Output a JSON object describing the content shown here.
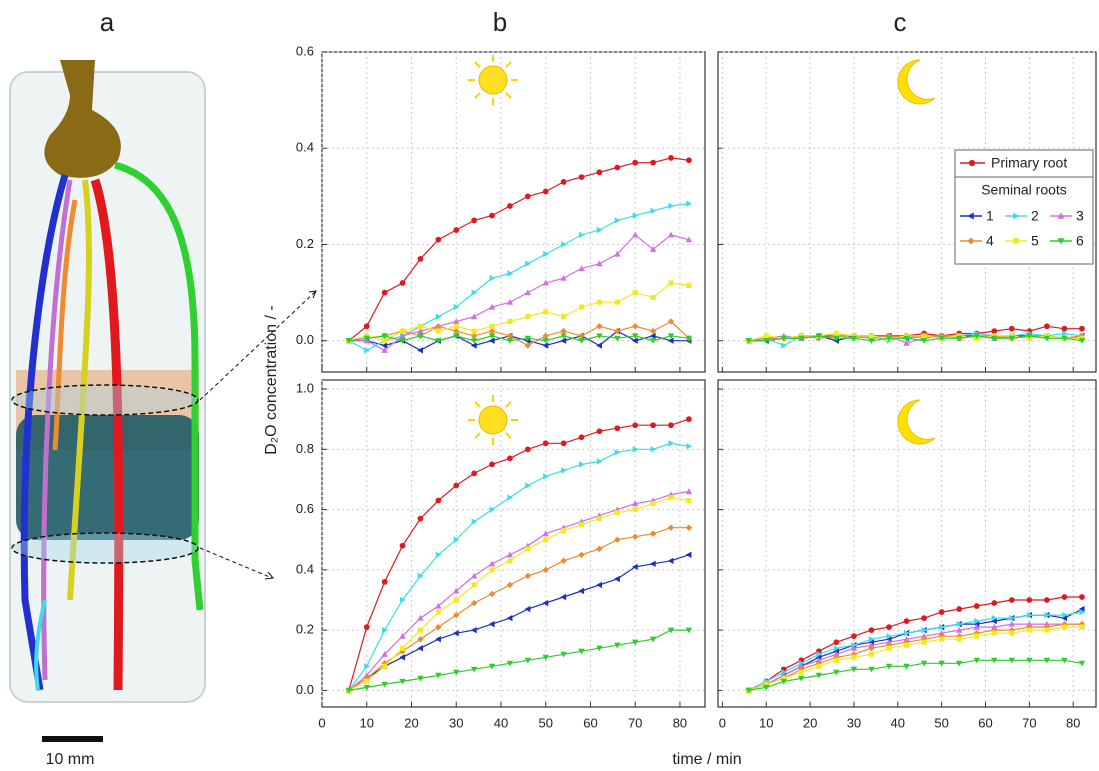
{
  "figure": {
    "panel_labels": [
      "a",
      "b",
      "c"
    ],
    "scale_bar": "10 mm",
    "y_label": "D₂O concentration / -",
    "x_label": "time / min"
  },
  "chart_data": [
    {
      "type": "line",
      "panel": "b",
      "xlim": [
        0,
        85.6
      ],
      "ylim": [
        -0.065,
        0.6
      ],
      "xticks": [
        0,
        10,
        20,
        30,
        40,
        50,
        60,
        70,
        80
      ],
      "yticks": [
        {
          "value": 0,
          "label": "0.0"
        },
        {
          "value": 0.2,
          "label": "0.2"
        },
        {
          "value": 0.4,
          "label": "0.4"
        },
        {
          "value": 0.6,
          "label": "0.6"
        }
      ],
      "xtick_labels": false,
      "ytick_labels": true,
      "grid": true,
      "legend": false,
      "x": [
        6,
        10,
        14,
        18,
        22,
        26,
        30,
        34,
        38,
        42,
        46,
        50,
        54,
        58,
        62,
        66,
        70,
        74,
        78,
        82
      ],
      "series": [
        {
          "color": "#e0191f",
          "marker": "circle",
          "values": [
            0,
            0.03,
            0.1,
            0.12,
            0.17,
            0.21,
            0.23,
            0.25,
            0.26,
            0.28,
            0.3,
            0.31,
            0.33,
            0.34,
            0.35,
            0.36,
            0.37,
            0.37,
            0.38,
            0.375
          ]
        },
        {
          "color": "#1f2fbf",
          "marker": "triangle-left",
          "values": [
            0,
            0,
            -0.01,
            0,
            -0.02,
            0,
            0.01,
            -0.01,
            0,
            0.01,
            0,
            -0.01,
            0,
            0.01,
            -0.01,
            0.02,
            0,
            0.01,
            0,
            0
          ]
        },
        {
          "color": "#3ddcec",
          "marker": "triangle-right",
          "values": [
            0,
            -0.02,
            0,
            0.01,
            0.03,
            0.05,
            0.07,
            0.1,
            0.13,
            0.14,
            0.16,
            0.18,
            0.2,
            0.22,
            0.23,
            0.25,
            0.26,
            0.27,
            0.28,
            0.285
          ]
        },
        {
          "color": "#d070e0",
          "marker": "triangle-up",
          "values": [
            0,
            0,
            -0.02,
            0.01,
            0.02,
            0.03,
            0.04,
            0.05,
            0.07,
            0.08,
            0.1,
            0.12,
            0.13,
            0.15,
            0.16,
            0.18,
            0.22,
            0.19,
            0.22,
            0.21
          ]
        },
        {
          "color": "#ee8a30",
          "marker": "diamond",
          "values": [
            0,
            0.005,
            0.01,
            0.02,
            0.01,
            0.03,
            0.02,
            0.01,
            0.02,
            0.01,
            -0.01,
            0.01,
            0.02,
            0.01,
            0.03,
            0.02,
            0.03,
            0.02,
            0.04,
            0.005
          ]
        },
        {
          "color": "#f2ea20",
          "marker": "square",
          "values": [
            0,
            0.01,
            0,
            0.02,
            0.03,
            0.02,
            0.03,
            0.02,
            0.03,
            0.04,
            0.05,
            0.06,
            0.05,
            0.07,
            0.08,
            0.08,
            0.1,
            0.09,
            0.12,
            0.115
          ]
        },
        {
          "color": "#2ecc2e",
          "marker": "triangle-down",
          "values": [
            0,
            0.005,
            0.01,
            0,
            0.01,
            0,
            0.01,
            0,
            0.01,
            0,
            0.005,
            0,
            0.01,
            0,
            0.01,
            0.005,
            0.01,
            0,
            0.01,
            0.005
          ]
        }
      ]
    },
    {
      "type": "line",
      "panel": "c",
      "xlim": [
        -1,
        85.2
      ],
      "ylim": [
        -0.065,
        0.6
      ],
      "xticks": [
        0,
        10,
        20,
        30,
        40,
        50,
        60,
        70,
        80
      ],
      "yticks": [
        0,
        0.2,
        0.4,
        0.6
      ],
      "xtick_labels": false,
      "ytick_labels": false,
      "grid": true,
      "legend": true,
      "legend_subtitle": "Seminal roots",
      "x": [
        6,
        10,
        14,
        18,
        22,
        26,
        30,
        34,
        38,
        42,
        46,
        50,
        54,
        58,
        62,
        66,
        70,
        74,
        78,
        82
      ],
      "series": [
        {
          "name": "Primary root",
          "color": "#e0191f",
          "marker": "circle",
          "values": [
            0,
            0.005,
            0.005,
            0.01,
            0.01,
            0.01,
            0.01,
            0.01,
            0.01,
            0.01,
            0.015,
            0.01,
            0.015,
            0.015,
            0.02,
            0.025,
            0.02,
            0.03,
            0.025,
            0.025
          ]
        },
        {
          "name": "1",
          "color": "#1f2fbf",
          "marker": "triangle-left",
          "values": [
            0,
            0,
            0.005,
            0.005,
            0.01,
            0,
            0.01,
            0.005,
            0.01,
            0.005,
            0.01,
            0.005,
            0.01,
            0.01,
            0.005,
            0.01,
            0.01,
            0.01,
            0.005,
            0.01
          ]
        },
        {
          "name": "2",
          "color": "#3ddcec",
          "marker": "triangle-right",
          "values": [
            0,
            0.005,
            -0.01,
            0.01,
            0.005,
            0.01,
            0.005,
            0.01,
            0,
            0.01,
            0.005,
            0.01,
            0.01,
            0.015,
            0.01,
            0.01,
            0.015,
            0.01,
            0.015,
            0.01
          ]
        },
        {
          "name": "3",
          "color": "#d070e0",
          "marker": "triangle-up",
          "values": [
            0,
            0.005,
            0.01,
            0.005,
            0.01,
            0.015,
            0.01,
            0.005,
            0.01,
            -0.005,
            0.005,
            0.01,
            0.005,
            0.01,
            0.005,
            0.01,
            0.005,
            0.01,
            0.005,
            0.005
          ]
        },
        {
          "name": "4",
          "color": "#ee8a30",
          "marker": "diamond",
          "values": [
            0,
            0.005,
            0.005,
            0.01,
            0.005,
            0.01,
            0.01,
            0.005,
            0.01,
            0.005,
            0.01,
            0.01,
            0.005,
            0.01,
            0.01,
            0.005,
            0.01,
            0.01,
            0.005,
            0.01
          ]
        },
        {
          "name": "5",
          "color": "#f2ea20",
          "marker": "square",
          "values": [
            0,
            0.01,
            0.005,
            0.01,
            0.01,
            0.015,
            0.01,
            0.01,
            0.005,
            0.01,
            0.01,
            0.005,
            0.01,
            0.005,
            0.01,
            0.01,
            0.005,
            0.01,
            0.005,
            0.005
          ]
        },
        {
          "name": "6",
          "color": "#2ecc2e",
          "marker": "triangle-down",
          "values": [
            0,
            0,
            0.005,
            0.005,
            0.01,
            0.005,
            0.005,
            0,
            0.005,
            0.005,
            0,
            0.005,
            0.005,
            0.01,
            0.005,
            0.005,
            0.01,
            0.005,
            0.005,
            0
          ]
        }
      ]
    },
    {
      "type": "line",
      "panel": "b",
      "xlim": [
        0,
        85.6
      ],
      "ylim": [
        -0.055,
        1.03
      ],
      "xticks": [
        0,
        10,
        20,
        30,
        40,
        50,
        60,
        70,
        80
      ],
      "yticks": [
        {
          "value": 0,
          "label": "0.0"
        },
        {
          "value": 0.2,
          "label": "0.2"
        },
        {
          "value": 0.4,
          "label": "0.4"
        },
        {
          "value": 0.6,
          "label": "0.6"
        },
        {
          "value": 0.8,
          "label": "0.8"
        },
        {
          "value": 1,
          "label": "1.0"
        }
      ],
      "xtick_labels": true,
      "ytick_labels": true,
      "grid": true,
      "legend": false,
      "x": [
        6,
        10,
        14,
        18,
        22,
        26,
        30,
        34,
        38,
        42,
        46,
        50,
        54,
        58,
        62,
        66,
        70,
        74,
        78,
        82
      ],
      "series": [
        {
          "color": "#e0191f",
          "marker": "circle",
          "values": [
            0,
            0.21,
            0.36,
            0.48,
            0.57,
            0.63,
            0.68,
            0.72,
            0.75,
            0.77,
            0.8,
            0.82,
            0.82,
            0.84,
            0.86,
            0.87,
            0.88,
            0.88,
            0.88,
            0.9
          ]
        },
        {
          "color": "#1f2fbf",
          "marker": "triangle-left",
          "values": [
            0,
            0.04,
            0.08,
            0.11,
            0.14,
            0.17,
            0.19,
            0.2,
            0.22,
            0.24,
            0.27,
            0.29,
            0.31,
            0.33,
            0.35,
            0.37,
            0.41,
            0.42,
            0.43,
            0.45
          ]
        },
        {
          "color": "#3ddcec",
          "marker": "triangle-right",
          "values": [
            0,
            0.08,
            0.2,
            0.3,
            0.38,
            0.45,
            0.5,
            0.56,
            0.6,
            0.64,
            0.68,
            0.71,
            0.73,
            0.75,
            0.76,
            0.79,
            0.8,
            0.8,
            0.82,
            0.81
          ]
        },
        {
          "color": "#d070e0",
          "marker": "triangle-up",
          "values": [
            0,
            0.05,
            0.12,
            0.18,
            0.24,
            0.28,
            0.33,
            0.38,
            0.42,
            0.45,
            0.48,
            0.52,
            0.54,
            0.56,
            0.58,
            0.6,
            0.62,
            0.63,
            0.65,
            0.66
          ]
        },
        {
          "color": "#ee8a30",
          "marker": "diamond",
          "values": [
            0,
            0.04,
            0.09,
            0.13,
            0.17,
            0.21,
            0.25,
            0.29,
            0.32,
            0.35,
            0.38,
            0.4,
            0.43,
            0.45,
            0.47,
            0.5,
            0.51,
            0.52,
            0.54,
            0.54
          ]
        },
        {
          "color": "#f2ea20",
          "marker": "square",
          "values": [
            0,
            0.03,
            0.08,
            0.14,
            0.2,
            0.26,
            0.3,
            0.35,
            0.4,
            0.43,
            0.47,
            0.5,
            0.53,
            0.55,
            0.57,
            0.59,
            0.6,
            0.62,
            0.64,
            0.63
          ]
        },
        {
          "color": "#2ecc2e",
          "marker": "triangle-down",
          "values": [
            0,
            0.01,
            0.02,
            0.03,
            0.04,
            0.05,
            0.06,
            0.07,
            0.08,
            0.09,
            0.1,
            0.11,
            0.12,
            0.13,
            0.14,
            0.15,
            0.16,
            0.17,
            0.2,
            0.2
          ]
        }
      ]
    },
    {
      "type": "line",
      "panel": "c",
      "xlim": [
        -1,
        85.2
      ],
      "ylim": [
        -0.055,
        1.03
      ],
      "xticks": [
        0,
        10,
        20,
        30,
        40,
        50,
        60,
        70,
        80
      ],
      "yticks": [
        0,
        0.2,
        0.4,
        0.6,
        0.8,
        1
      ],
      "xtick_labels": true,
      "ytick_labels": false,
      "grid": true,
      "legend": false,
      "x": [
        6,
        10,
        14,
        18,
        22,
        26,
        30,
        34,
        38,
        42,
        46,
        50,
        54,
        58,
        62,
        66,
        70,
        74,
        78,
        82
      ],
      "series": [
        {
          "color": "#e0191f",
          "marker": "circle",
          "values": [
            0,
            0.03,
            0.07,
            0.1,
            0.13,
            0.16,
            0.18,
            0.2,
            0.21,
            0.23,
            0.24,
            0.26,
            0.27,
            0.28,
            0.29,
            0.3,
            0.3,
            0.3,
            0.31,
            0.31
          ]
        },
        {
          "color": "#1f2fbf",
          "marker": "triangle-left",
          "values": [
            0,
            0.02,
            0.05,
            0.08,
            0.11,
            0.13,
            0.15,
            0.16,
            0.17,
            0.19,
            0.2,
            0.21,
            0.22,
            0.22,
            0.23,
            0.24,
            0.25,
            0.25,
            0.24,
            0.27
          ]
        },
        {
          "color": "#3ddcec",
          "marker": "triangle-right",
          "values": [
            0,
            0.03,
            0.06,
            0.09,
            0.12,
            0.14,
            0.15,
            0.17,
            0.18,
            0.19,
            0.2,
            0.21,
            0.22,
            0.23,
            0.24,
            0.24,
            0.25,
            0.25,
            0.25,
            0.26
          ]
        },
        {
          "color": "#d070e0",
          "marker": "triangle-up",
          "values": [
            0,
            0.02,
            0.05,
            0.08,
            0.1,
            0.12,
            0.14,
            0.15,
            0.16,
            0.17,
            0.18,
            0.19,
            0.2,
            0.21,
            0.21,
            0.22,
            0.22,
            0.22,
            0.22,
            0.22
          ]
        },
        {
          "color": "#ee8a30",
          "marker": "diamond",
          "values": [
            0,
            0.02,
            0.04,
            0.07,
            0.09,
            0.11,
            0.12,
            0.14,
            0.15,
            0.16,
            0.17,
            0.18,
            0.18,
            0.19,
            0.2,
            0.2,
            0.21,
            0.21,
            0.22,
            0.22
          ]
        },
        {
          "color": "#f2ea20",
          "marker": "square",
          "values": [
            0,
            0.02,
            0.04,
            0.06,
            0.08,
            0.1,
            0.11,
            0.12,
            0.14,
            0.15,
            0.16,
            0.17,
            0.17,
            0.18,
            0.19,
            0.19,
            0.2,
            0.2,
            0.21,
            0.21
          ]
        },
        {
          "color": "#2ecc2e",
          "marker": "triangle-down",
          "values": [
            0,
            0.01,
            0.03,
            0.04,
            0.05,
            0.06,
            0.07,
            0.07,
            0.08,
            0.08,
            0.09,
            0.09,
            0.09,
            0.1,
            0.1,
            0.1,
            0.1,
            0.1,
            0.1,
            0.09
          ]
        }
      ]
    }
  ]
}
